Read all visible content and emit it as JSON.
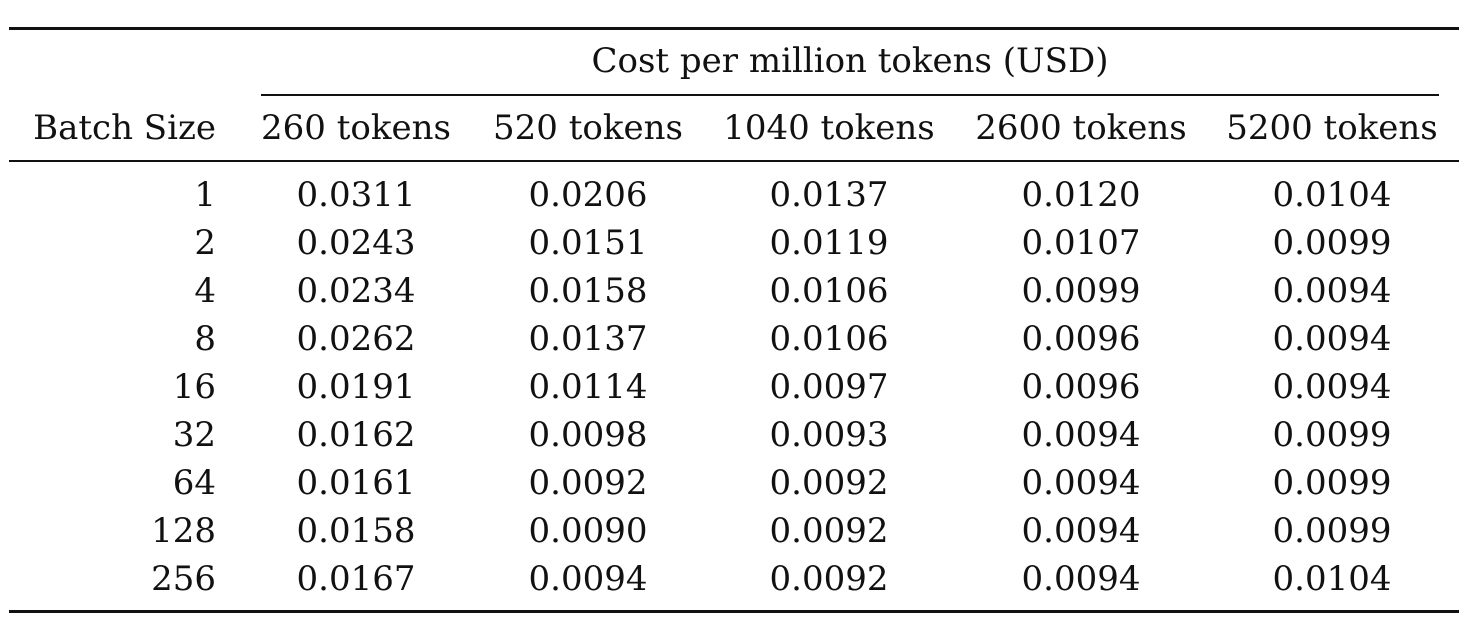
{
  "table": {
    "group_header": "Cost per million tokens (USD)",
    "stub_header": "Batch Size",
    "columns": [
      "260 tokens",
      "520 tokens",
      "1040 tokens",
      "2600 tokens",
      "5200 tokens"
    ],
    "rows": [
      {
        "batch": "1",
        "values": [
          "0.0311",
          "0.0206",
          "0.0137",
          "0.0120",
          "0.0104"
        ]
      },
      {
        "batch": "2",
        "values": [
          "0.0243",
          "0.0151",
          "0.0119",
          "0.0107",
          "0.0099"
        ]
      },
      {
        "batch": "4",
        "values": [
          "0.0234",
          "0.0158",
          "0.0106",
          "0.0099",
          "0.0094"
        ]
      },
      {
        "batch": "8",
        "values": [
          "0.0262",
          "0.0137",
          "0.0106",
          "0.0096",
          "0.0094"
        ]
      },
      {
        "batch": "16",
        "values": [
          "0.0191",
          "0.0114",
          "0.0097",
          "0.0096",
          "0.0094"
        ]
      },
      {
        "batch": "32",
        "values": [
          "0.0162",
          "0.0098",
          "0.0093",
          "0.0094",
          "0.0099"
        ]
      },
      {
        "batch": "64",
        "values": [
          "0.0161",
          "0.0092",
          "0.0092",
          "0.0094",
          "0.0099"
        ]
      },
      {
        "batch": "128",
        "values": [
          "0.0158",
          "0.0090",
          "0.0092",
          "0.0094",
          "0.0099"
        ]
      },
      {
        "batch": "256",
        "values": [
          "0.0167",
          "0.0094",
          "0.0092",
          "0.0094",
          "0.0104"
        ]
      }
    ]
  }
}
